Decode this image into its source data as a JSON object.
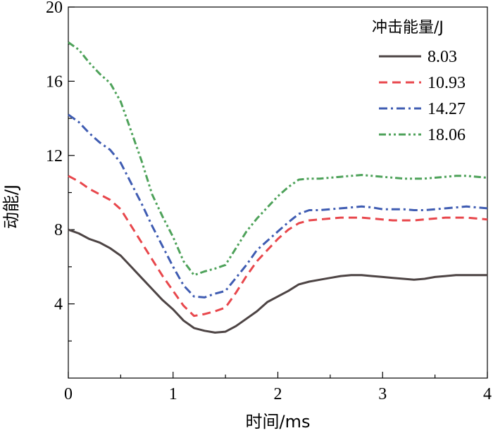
{
  "chart_data": {
    "type": "line",
    "title": "",
    "xlabel": "时间/ms",
    "ylabel": "动能/J",
    "xlim": [
      0,
      4
    ],
    "ylim": [
      0,
      20
    ],
    "x_ticks": [
      0,
      1,
      2,
      3,
      4
    ],
    "y_ticks": [
      4,
      8,
      12,
      16,
      20
    ],
    "x_tick_labels": [
      "0",
      "1",
      "2",
      "3",
      "4"
    ],
    "y_tick_labels": [
      "4",
      "8",
      "12",
      "16",
      "20"
    ],
    "grid": false,
    "legend": {
      "title": "冲击能量/J",
      "position": "top-right"
    },
    "series": [
      {
        "name": "8.03",
        "color": "#4d4444",
        "dash": "solid",
        "x": [
          0,
          0.1,
          0.2,
          0.3,
          0.4,
          0.5,
          0.6,
          0.7,
          0.8,
          0.9,
          1.0,
          1.1,
          1.2,
          1.3,
          1.4,
          1.5,
          1.6,
          1.7,
          1.8,
          1.9,
          2.0,
          2.1,
          2.2,
          2.3,
          2.4,
          2.5,
          2.6,
          2.7,
          2.8,
          2.9,
          3.0,
          3.1,
          3.2,
          3.3,
          3.4,
          3.5,
          3.6,
          3.7,
          3.8,
          3.9,
          4.0
        ],
        "values": [
          8.0,
          7.8,
          7.5,
          7.3,
          7.0,
          6.6,
          6.0,
          5.4,
          4.8,
          4.2,
          3.7,
          3.1,
          2.7,
          2.55,
          2.45,
          2.5,
          2.8,
          3.2,
          3.6,
          4.1,
          4.4,
          4.7,
          5.05,
          5.2,
          5.3,
          5.4,
          5.5,
          5.55,
          5.55,
          5.5,
          5.45,
          5.4,
          5.35,
          5.3,
          5.35,
          5.45,
          5.5,
          5.55,
          5.55,
          5.55,
          5.55
        ]
      },
      {
        "name": "10.93",
        "color": "#e8474c",
        "dash": "dashed",
        "x": [
          0,
          0.1,
          0.2,
          0.3,
          0.4,
          0.5,
          0.6,
          0.7,
          0.8,
          0.9,
          1.0,
          1.1,
          1.2,
          1.3,
          1.4,
          1.5,
          1.6,
          1.7,
          1.8,
          1.9,
          2.0,
          2.1,
          2.2,
          2.3,
          2.4,
          2.5,
          2.6,
          2.7,
          2.8,
          2.9,
          3.0,
          3.1,
          3.2,
          3.3,
          3.4,
          3.5,
          3.6,
          3.7,
          3.8,
          3.9,
          4.0
        ],
        "values": [
          10.9,
          10.6,
          10.2,
          9.9,
          9.6,
          9.1,
          8.2,
          7.3,
          6.4,
          5.5,
          4.7,
          3.9,
          3.35,
          3.45,
          3.6,
          3.8,
          4.6,
          5.5,
          6.3,
          6.9,
          7.5,
          8.0,
          8.35,
          8.5,
          8.55,
          8.6,
          8.65,
          8.65,
          8.65,
          8.6,
          8.55,
          8.5,
          8.5,
          8.5,
          8.55,
          8.6,
          8.65,
          8.65,
          8.65,
          8.6,
          8.55
        ]
      },
      {
        "name": "14.27",
        "color": "#3f5cb2",
        "dash": "dashdot",
        "x": [
          0,
          0.1,
          0.2,
          0.3,
          0.4,
          0.5,
          0.6,
          0.7,
          0.8,
          0.9,
          1.0,
          1.1,
          1.2,
          1.3,
          1.4,
          1.5,
          1.6,
          1.7,
          1.8,
          1.9,
          2.0,
          2.1,
          2.2,
          2.3,
          2.4,
          2.5,
          2.6,
          2.7,
          2.8,
          2.9,
          3.0,
          3.1,
          3.2,
          3.3,
          3.4,
          3.5,
          3.6,
          3.7,
          3.8,
          3.9,
          4.0
        ],
        "values": [
          14.2,
          13.8,
          13.2,
          12.7,
          12.3,
          11.6,
          10.5,
          9.4,
          8.2,
          7.1,
          6.0,
          5.0,
          4.4,
          4.35,
          4.55,
          4.7,
          5.4,
          6.1,
          6.9,
          7.4,
          7.9,
          8.4,
          8.85,
          9.05,
          9.05,
          9.1,
          9.15,
          9.2,
          9.25,
          9.2,
          9.1,
          9.1,
          9.1,
          9.05,
          9.05,
          9.1,
          9.15,
          9.2,
          9.25,
          9.2,
          9.15
        ]
      },
      {
        "name": "18.06",
        "color": "#4ea25a",
        "dash": "dashdotdot",
        "x": [
          0,
          0.1,
          0.2,
          0.3,
          0.4,
          0.5,
          0.6,
          0.7,
          0.8,
          0.9,
          1.0,
          1.1,
          1.2,
          1.3,
          1.4,
          1.5,
          1.6,
          1.7,
          1.8,
          1.9,
          2.0,
          2.1,
          2.2,
          2.3,
          2.4,
          2.5,
          2.6,
          2.7,
          2.8,
          2.9,
          3.0,
          3.1,
          3.2,
          3.3,
          3.4,
          3.5,
          3.6,
          3.7,
          3.8,
          3.9,
          4.0
        ],
        "values": [
          18.1,
          17.7,
          17.0,
          16.4,
          15.9,
          14.9,
          13.3,
          11.7,
          9.9,
          8.7,
          7.6,
          6.3,
          5.55,
          5.75,
          5.9,
          6.1,
          7.0,
          7.9,
          8.6,
          9.2,
          9.8,
          10.3,
          10.7,
          10.75,
          10.75,
          10.8,
          10.85,
          10.9,
          10.95,
          10.9,
          10.85,
          10.8,
          10.75,
          10.75,
          10.75,
          10.8,
          10.85,
          10.9,
          10.9,
          10.85,
          10.8
        ]
      }
    ]
  }
}
